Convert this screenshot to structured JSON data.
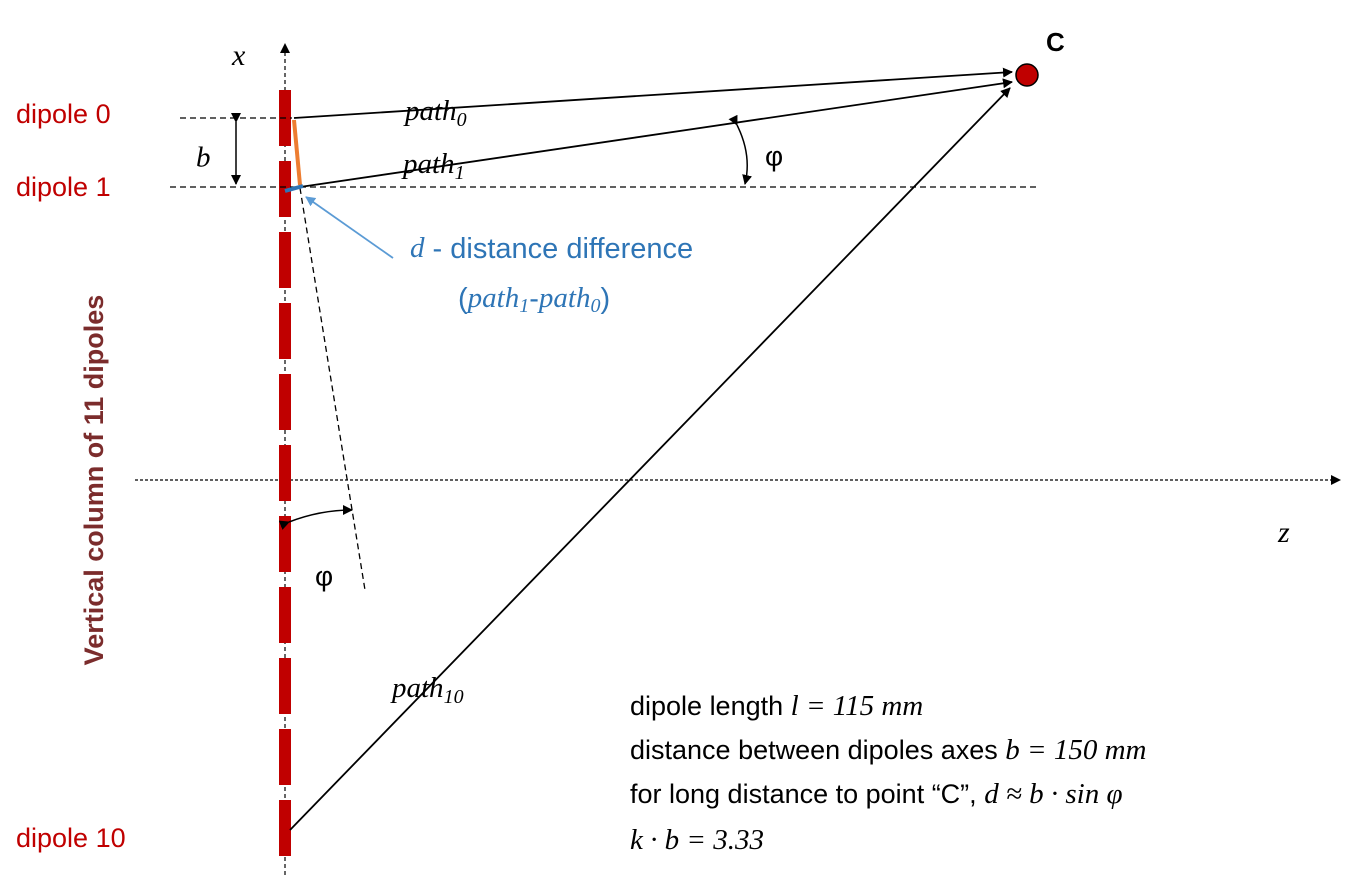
{
  "axes": {
    "x": "x",
    "z": "z"
  },
  "point": "C",
  "dipoles": {
    "first": "dipole 0",
    "second": "dipole 1",
    "last": "dipole 10"
  },
  "column_label": "Vertical column of 11 dipoles",
  "spacing": "b",
  "paths": [
    {
      "base": "path",
      "sub": "0"
    },
    {
      "base": "path",
      "sub": "1"
    },
    {
      "base": "path",
      "sub": "10"
    }
  ],
  "angles": [
    "φ",
    "φ"
  ],
  "difference": {
    "symbol": "d",
    "text": " - distance difference",
    "formula": {
      "open": "(",
      "a": "path",
      "a_sub": "1",
      "sep": "-",
      "b": "path",
      "b_sub": "0",
      "close": ")"
    }
  },
  "notes": [
    {
      "text": "dipole length ",
      "math": "l = 115 mm"
    },
    {
      "text": "distance between dipoles axes ",
      "math": "b = 150 mm"
    },
    {
      "text": "for long distance to point “C”, ",
      "math": "d ≈ b · sin φ"
    },
    {
      "math": "k · b = 3.33"
    }
  ]
}
